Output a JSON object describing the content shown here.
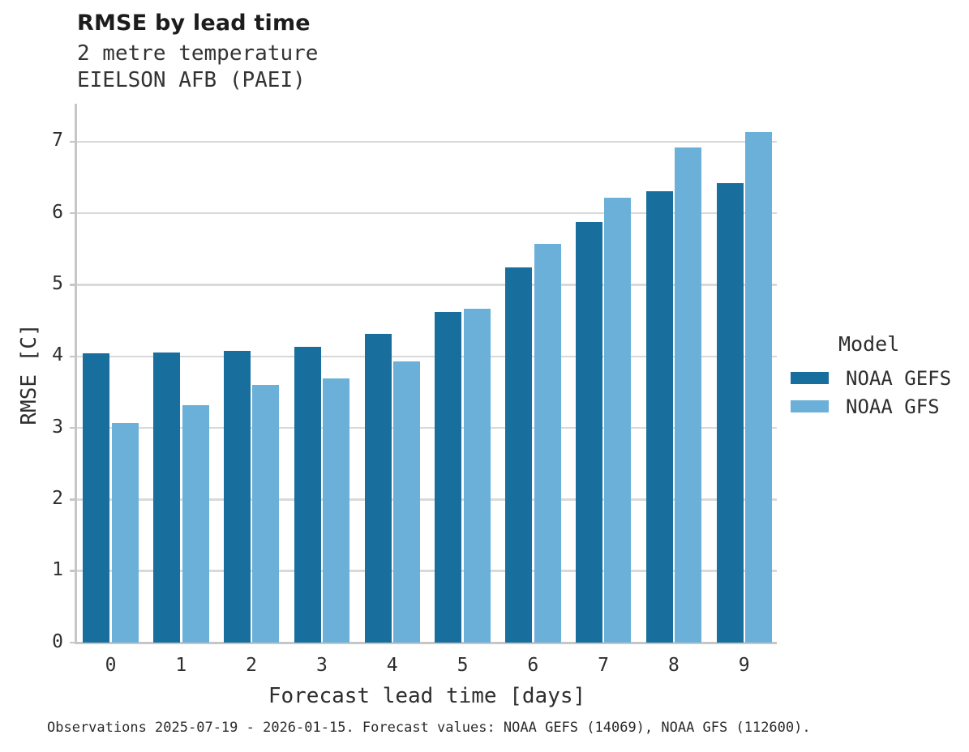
{
  "chart_data": {
    "type": "bar",
    "title": "RMSE by lead time",
    "subtitle_lines": [
      "2 metre temperature",
      "EIELSON AFB (PAEI)"
    ],
    "categories": [
      "0",
      "1",
      "2",
      "3",
      "4",
      "5",
      "6",
      "7",
      "8",
      "9"
    ],
    "series": [
      {
        "name": "NOAA GEFS",
        "color": "#186f9e",
        "values": [
          4.04,
          4.05,
          4.08,
          4.13,
          4.31,
          4.62,
          5.24,
          5.88,
          6.31,
          6.42
        ]
      },
      {
        "name": "NOAA GFS",
        "color": "#6bb0d8",
        "values": [
          3.07,
          3.32,
          3.6,
          3.69,
          3.93,
          4.67,
          5.57,
          6.22,
          6.92,
          7.13
        ]
      }
    ],
    "xlabel": "Forecast lead time [days]",
    "ylabel": "RMSE [C]",
    "ylim": [
      0,
      7.53
    ],
    "yticks": [
      0,
      1,
      2,
      3,
      4,
      5,
      6,
      7
    ],
    "grid": "horizontal",
    "legend_title": "Model",
    "legend_position": "right"
  },
  "caption": "Observations 2025-07-19 - 2026-01-15. Forecast values: NOAA GEFS (14069), NOAA GFS (112600).",
  "colors": {
    "background": "#ffffff",
    "grid": "#d9d9d9",
    "axis": "#c6c6c6",
    "text": "#2e2e2e"
  }
}
